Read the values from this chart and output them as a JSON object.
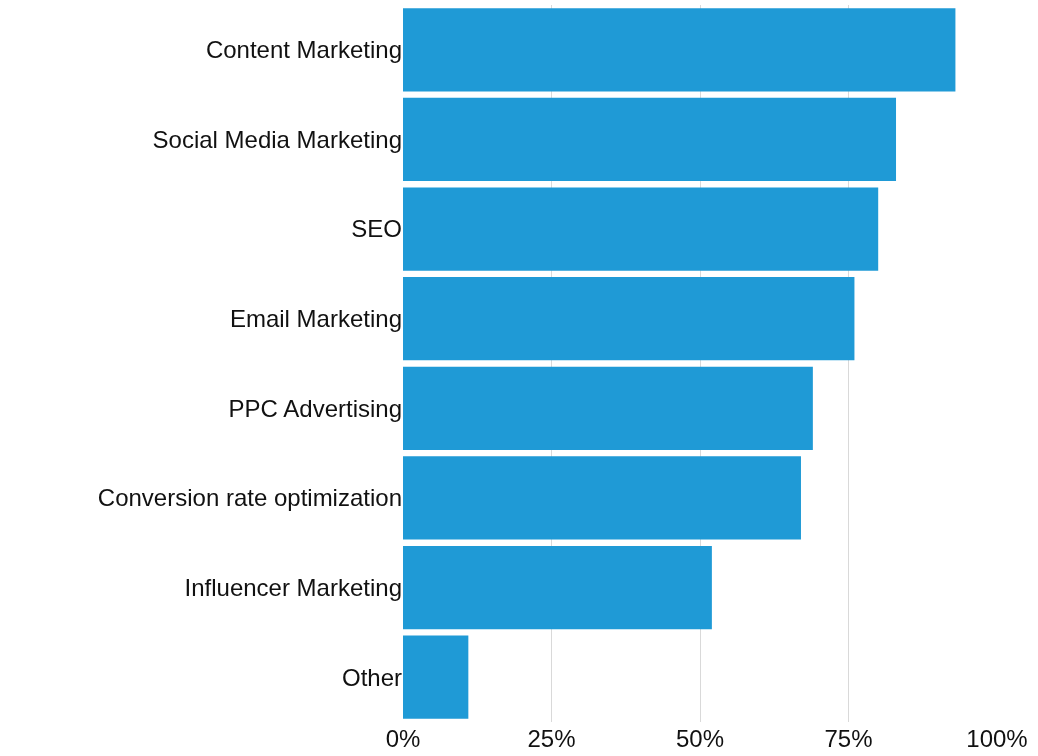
{
  "chart_data": {
    "type": "bar",
    "orientation": "horizontal",
    "categories": [
      "Content Marketing",
      "Social Media Marketing",
      "SEO",
      "Email Marketing",
      "PPC Advertising",
      "Conversion rate optimization",
      "Influencer Marketing",
      "Other"
    ],
    "values": [
      93,
      83,
      80,
      76,
      69,
      67,
      52,
      11
    ],
    "color": "#1f9ad6",
    "xlim": [
      0,
      100
    ],
    "xticks": [
      {
        "value": 0,
        "label": "0%"
      },
      {
        "value": 25,
        "label": "25%"
      },
      {
        "value": 50,
        "label": "50%"
      },
      {
        "value": 75,
        "label": "75%"
      },
      {
        "value": 100,
        "label": "100%"
      }
    ],
    "grid": "x"
  }
}
